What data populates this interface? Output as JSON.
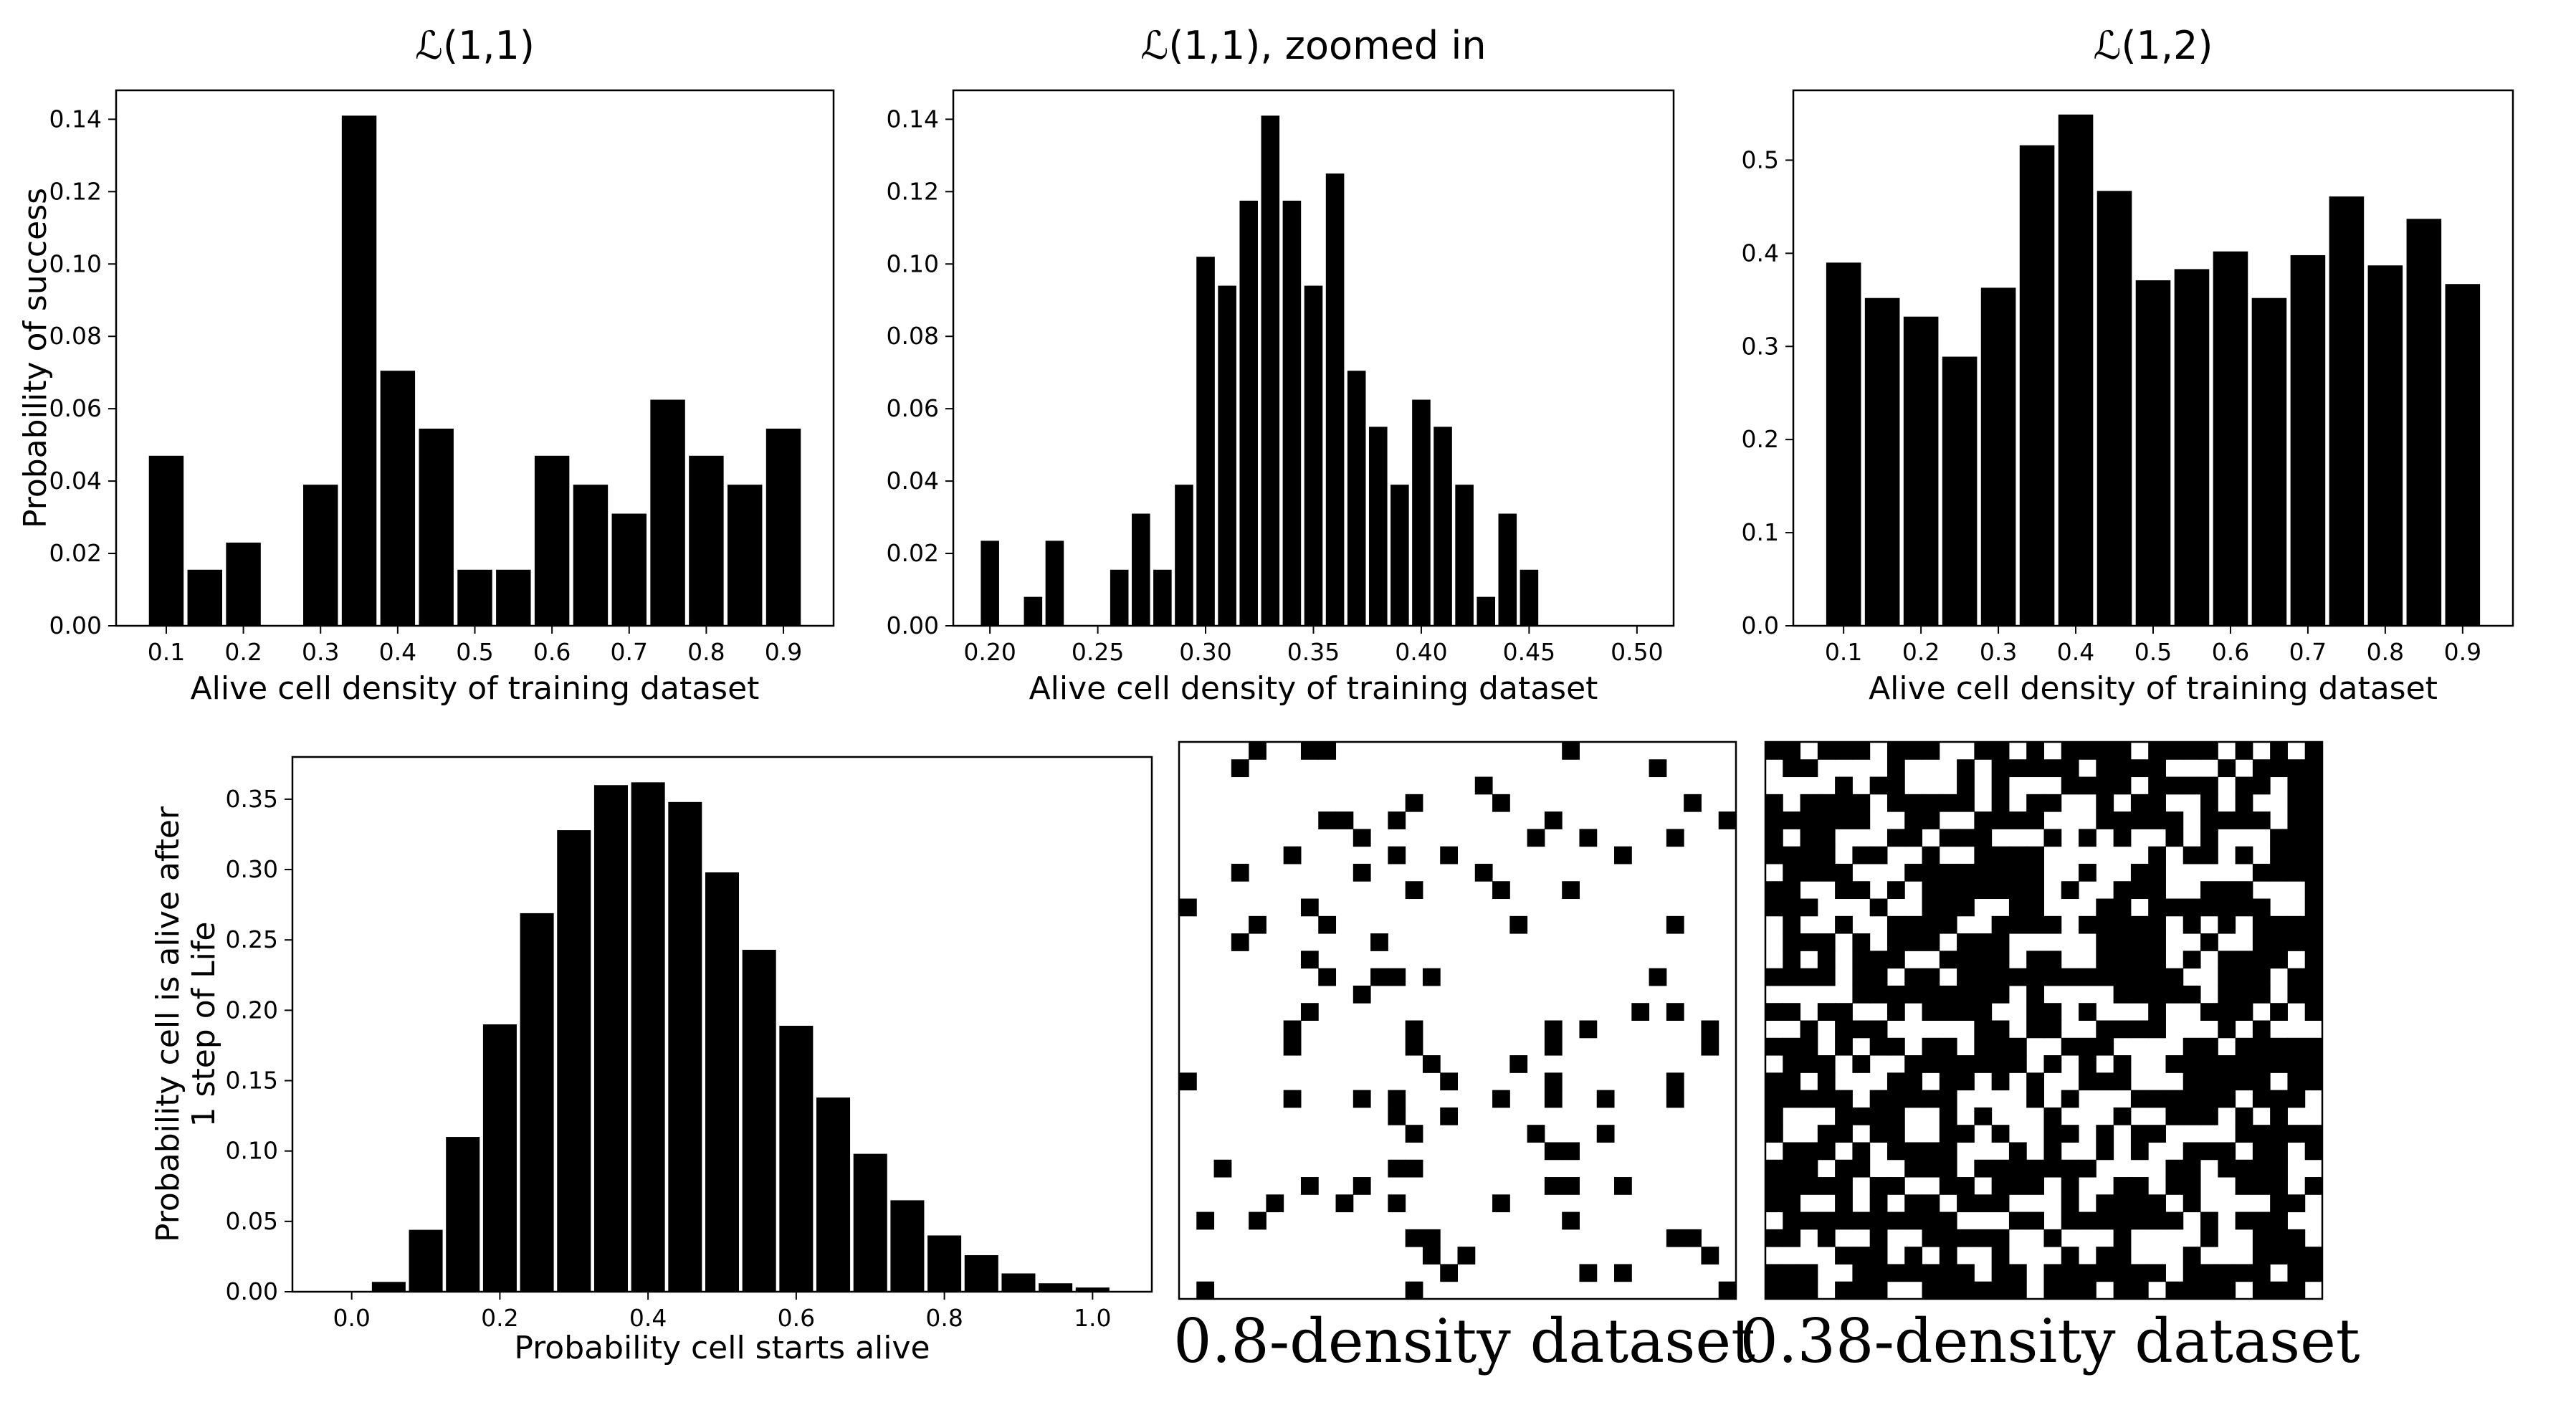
{
  "colors": {
    "bar": "#000000",
    "background": "#ffffff",
    "axes": "#000000"
  },
  "chart_data": [
    {
      "id": "c1",
      "type": "bar",
      "title": "ℒ(1,1)",
      "xlabel": "Alive cell density of training dataset",
      "ylabel": "Probability of success",
      "x": [
        0.1,
        0.15,
        0.2,
        0.25,
        0.3,
        0.35,
        0.4,
        0.45,
        0.5,
        0.55,
        0.6,
        0.65,
        0.7,
        0.75,
        0.8,
        0.85,
        0.9
      ],
      "values": [
        0.047,
        0.0155,
        0.023,
        0.0,
        0.039,
        0.141,
        0.0705,
        0.0545,
        0.0155,
        0.0155,
        0.047,
        0.039,
        0.031,
        0.0625,
        0.047,
        0.039,
        0.0545
      ],
      "xlim": [
        0.035,
        0.965
      ],
      "ylim": [
        0,
        0.148
      ],
      "bar_width": 0.045,
      "xticks": [
        0.1,
        0.2,
        0.3,
        0.4,
        0.5,
        0.6,
        0.7,
        0.8,
        0.9
      ],
      "xtick_labels": [
        "0.1",
        "0.2",
        "0.3",
        "0.4",
        "0.5",
        "0.6",
        "0.7",
        "0.8",
        "0.9"
      ],
      "yticks": [
        0,
        0.02,
        0.04,
        0.06,
        0.08,
        0.1,
        0.12,
        0.14
      ],
      "ytick_labels": [
        "0.00",
        "0.02",
        "0.04",
        "0.06",
        "0.08",
        "0.10",
        "0.12",
        "0.14"
      ],
      "grid": false,
      "legend": "none"
    },
    {
      "id": "c2",
      "type": "bar",
      "title": "ℒ(1,1), zoomed in",
      "xlabel": "Alive cell density of training dataset",
      "ylabel": "",
      "x": [
        0.2,
        0.21,
        0.22,
        0.23,
        0.24,
        0.25,
        0.26,
        0.27,
        0.28,
        0.29,
        0.3,
        0.31,
        0.32,
        0.33,
        0.34,
        0.35,
        0.36,
        0.37,
        0.38,
        0.39,
        0.4,
        0.41,
        0.42,
        0.43,
        0.44,
        0.45,
        0.46,
        0.47,
        0.48,
        0.49,
        0.5
      ],
      "values": [
        0.0235,
        0.0,
        0.008,
        0.0235,
        0.0,
        0.0,
        0.0155,
        0.031,
        0.0155,
        0.039,
        0.102,
        0.094,
        0.1175,
        0.141,
        0.1175,
        0.094,
        0.125,
        0.0705,
        0.055,
        0.039,
        0.0625,
        0.055,
        0.039,
        0.008,
        0.031,
        0.0155,
        0,
        0,
        0,
        0,
        0
      ],
      "xlim": [
        0.183,
        0.517
      ],
      "ylim": [
        0,
        0.148
      ],
      "bar_width": 0.0085,
      "xticks": [
        0.2,
        0.25,
        0.3,
        0.35,
        0.4,
        0.45,
        0.5
      ],
      "xtick_labels": [
        "0.20",
        "0.25",
        "0.30",
        "0.35",
        "0.40",
        "0.45",
        "0.50"
      ],
      "yticks": [
        0,
        0.02,
        0.04,
        0.06,
        0.08,
        0.1,
        0.12,
        0.14
      ],
      "ytick_labels": [
        "0.00",
        "0.02",
        "0.04",
        "0.06",
        "0.08",
        "0.10",
        "0.12",
        "0.14"
      ],
      "grid": false,
      "legend": "none"
    },
    {
      "id": "c3",
      "type": "bar",
      "title": "ℒ(1,2)",
      "xlabel": "Alive cell density of training dataset",
      "ylabel": "",
      "x": [
        0.1,
        0.15,
        0.2,
        0.25,
        0.3,
        0.35,
        0.4,
        0.45,
        0.5,
        0.55,
        0.6,
        0.65,
        0.7,
        0.75,
        0.8,
        0.85,
        0.9
      ],
      "values": [
        0.39,
        0.352,
        0.332,
        0.289,
        0.363,
        0.516,
        0.549,
        0.467,
        0.371,
        0.383,
        0.402,
        0.352,
        0.398,
        0.461,
        0.387,
        0.437,
        0.367
      ],
      "xlim": [
        0.035,
        0.965
      ],
      "ylim": [
        0,
        0.575
      ],
      "bar_width": 0.045,
      "xticks": [
        0.1,
        0.2,
        0.3,
        0.4,
        0.5,
        0.6,
        0.7,
        0.8,
        0.9
      ],
      "xtick_labels": [
        "0.1",
        "0.2",
        "0.3",
        "0.4",
        "0.5",
        "0.6",
        "0.7",
        "0.8",
        "0.9"
      ],
      "yticks": [
        0,
        0.1,
        0.2,
        0.3,
        0.4,
        0.5
      ],
      "ytick_labels": [
        "0.0",
        "0.1",
        "0.2",
        "0.3",
        "0.4",
        "0.5"
      ],
      "grid": false,
      "legend": "none"
    },
    {
      "id": "c4",
      "type": "bar",
      "title": "",
      "xlabel": "Probability cell starts alive",
      "ylabel": "Probability cell is alive after\n1 step of Life",
      "x": [
        0.0,
        0.05,
        0.1,
        0.15,
        0.2,
        0.25,
        0.3,
        0.35,
        0.4,
        0.45,
        0.5,
        0.55,
        0.6,
        0.65,
        0.7,
        0.75,
        0.8,
        0.85,
        0.9,
        0.95,
        1.0
      ],
      "values": [
        0.0,
        0.007,
        0.044,
        0.11,
        0.19,
        0.269,
        0.328,
        0.36,
        0.362,
        0.348,
        0.298,
        0.243,
        0.189,
        0.138,
        0.098,
        0.065,
        0.04,
        0.026,
        0.013,
        0.006,
        0.003
      ],
      "xlim": [
        -0.08,
        1.08
      ],
      "ylim": [
        0,
        0.38
      ],
      "bar_width": 0.0455,
      "xticks": [
        0.0,
        0.2,
        0.4,
        0.6,
        0.8,
        1.0
      ],
      "xtick_labels": [
        "0.0",
        "0.2",
        "0.4",
        "0.6",
        "0.8",
        "1.0"
      ],
      "yticks": [
        0,
        0.05,
        0.1,
        0.15,
        0.2,
        0.25,
        0.3,
        0.35
      ],
      "ytick_labels": [
        "0.00",
        "0.05",
        "0.10",
        "0.15",
        "0.20",
        "0.25",
        "0.30",
        "0.35"
      ],
      "grid": false,
      "legend": "none"
    }
  ],
  "grids": [
    {
      "id": "g1",
      "caption": "0.8-density dataset",
      "size": 32,
      "alive_fraction_shown": 0.1,
      "seed": 7
    },
    {
      "id": "g2",
      "caption": "0.38-density dataset",
      "size": 32,
      "alive_fraction_shown": 0.62,
      "seed": 13
    }
  ]
}
